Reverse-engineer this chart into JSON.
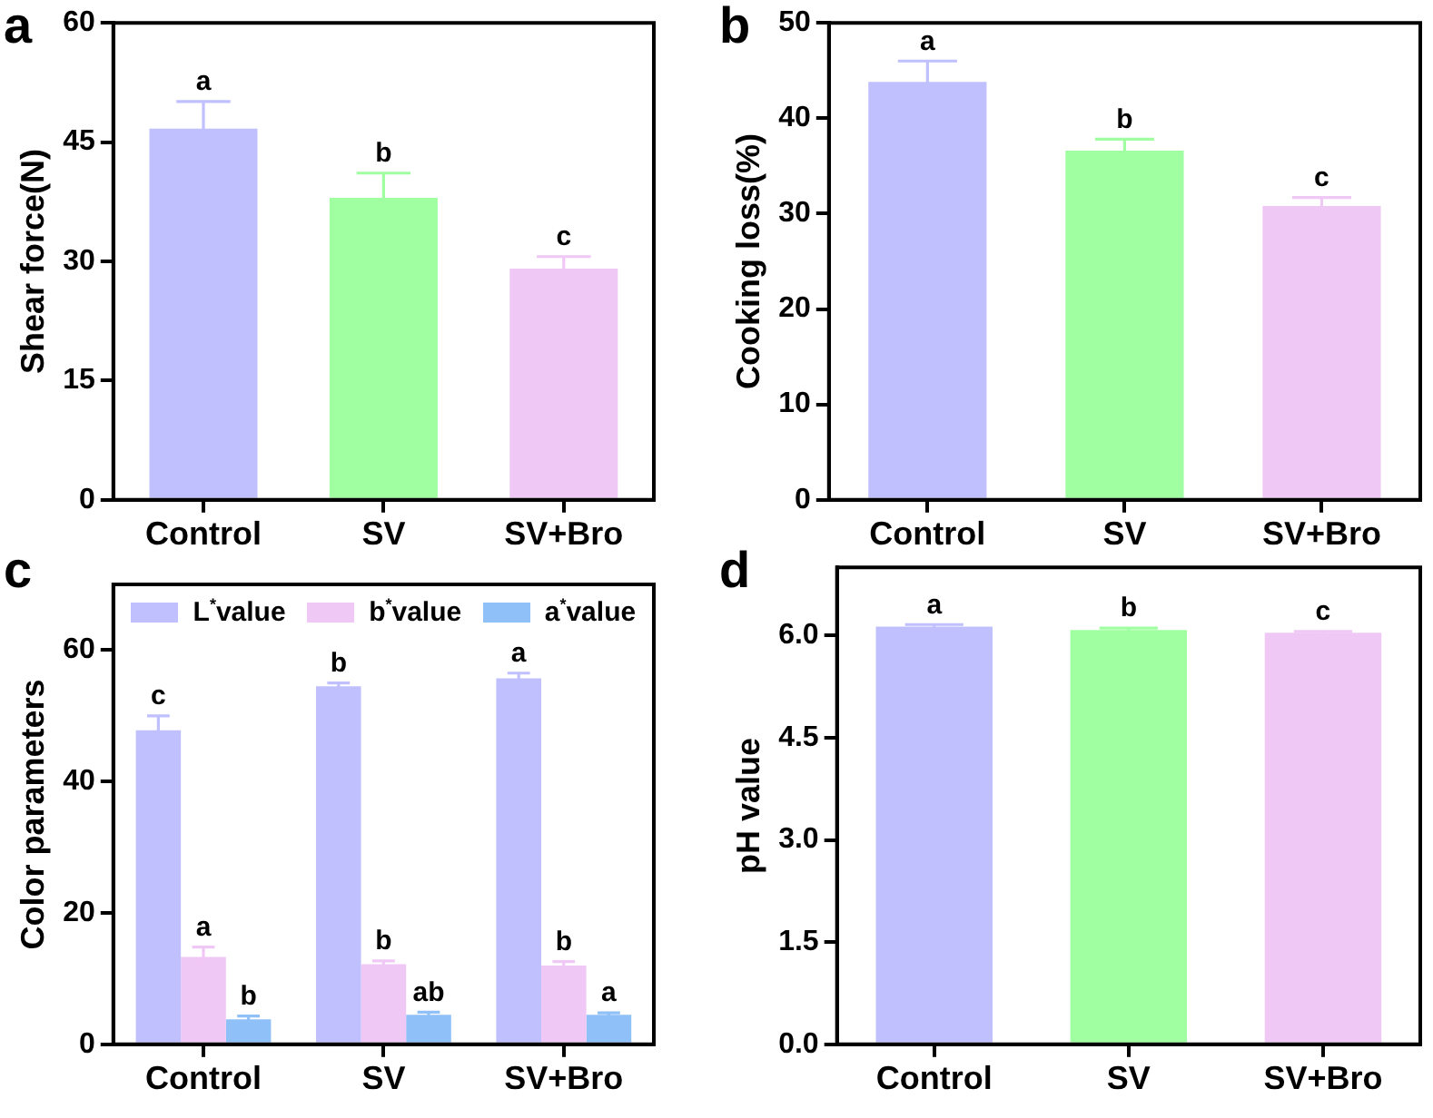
{
  "chart_data": [
    {
      "type": "bar",
      "title": "a",
      "ylabel": "Shear force(N)",
      "categories": [
        "Control",
        "SV",
        "SV+Bro"
      ],
      "values": [
        46.7,
        38.0,
        29.1
      ],
      "errors": [
        3.4,
        3.1,
        1.5
      ],
      "colors": [
        "#c0c0ff",
        "#a0ffa0",
        "#f0c8f5"
      ],
      "ylim": [
        0,
        60
      ],
      "yticks": [
        0,
        15,
        30,
        45,
        60
      ],
      "grid": false,
      "legend": false,
      "annotations": [
        {
          "text": "a",
          "x": "Control",
          "y": 50.1
        },
        {
          "text": "b",
          "x": "SV",
          "y": 41.1
        },
        {
          "text": "c",
          "x": "SV+Bro",
          "y": 30.6
        }
      ]
    },
    {
      "type": "bar",
      "title": "b",
      "ylabel": "Cooking loss(%)",
      "categories": [
        "Control",
        "SV",
        "SV+Bro"
      ],
      "values": [
        43.8,
        36.6,
        30.8
      ],
      "errors": [
        2.2,
        1.2,
        0.9
      ],
      "colors": [
        "#c0c0ff",
        "#a0ffa0",
        "#f0c8f5"
      ],
      "ylim": [
        0,
        50
      ],
      "yticks": [
        0,
        10,
        20,
        30,
        40,
        50
      ],
      "grid": false,
      "legend": false,
      "annotations": [
        {
          "text": "a",
          "x": "Control",
          "y": 46.0
        },
        {
          "text": "b",
          "x": "SV",
          "y": 37.8
        },
        {
          "text": "c",
          "x": "SV+Bro",
          "y": 31.7
        }
      ]
    },
    {
      "type": "bar",
      "title": "c",
      "ylabel": "Color parameters",
      "categories": [
        "Control",
        "SV",
        "SV+Bro"
      ],
      "series": [
        {
          "name": "L$^{*}$value",
          "color": "#c0c0ff",
          "values": [
            47.8,
            54.5,
            55.7
          ],
          "errors": [
            2.2,
            0.5,
            0.8
          ]
        },
        {
          "name": "b$^{*}$value",
          "color": "#f0c8f5",
          "values": [
            13.3,
            12.2,
            12.0
          ],
          "errors": [
            1.5,
            0.5,
            0.6
          ]
        },
        {
          "name": "a$^{*}$value",
          "color": "#90c0f8",
          "values": [
            3.8,
            4.5,
            4.5
          ],
          "errors": [
            0.5,
            0.4,
            0.3
          ]
        }
      ],
      "ylim": [
        0,
        70
      ],
      "yticks": [
        0,
        20,
        40,
        60
      ],
      "grid": false,
      "legend": "top",
      "annotations": [
        "c",
        "b",
        "a",
        "a",
        "b",
        "b",
        "b",
        "ab",
        "a"
      ]
    },
    {
      "type": "bar",
      "title": "d",
      "ylabel": "pH value",
      "categories": [
        "Control",
        "SV",
        "SV+Bro"
      ],
      "values": [
        6.13,
        6.08,
        6.04
      ],
      "errors": [
        0.03,
        0.03,
        0.02
      ],
      "colors": [
        "#c0c0ff",
        "#a0ffa0",
        "#f0c8f5"
      ],
      "ylim": [
        0,
        7
      ],
      "yticks": [
        {
          "value": 0,
          "label": "0.0"
        },
        {
          "value": 1.5,
          "label": "1.5"
        },
        {
          "value": 3,
          "label": "3.0"
        },
        {
          "value": 4.5,
          "label": "4.5"
        },
        {
          "value": 6,
          "label": "6.0"
        }
      ],
      "grid": false,
      "legend": false,
      "annotations": [
        {
          "text": "a",
          "x": "Control",
          "y": 6.16
        },
        {
          "text": "b",
          "x": "SV",
          "y": 6.11
        },
        {
          "text": "c",
          "x": "SV+Bro",
          "y": 6.06
        }
      ]
    }
  ]
}
